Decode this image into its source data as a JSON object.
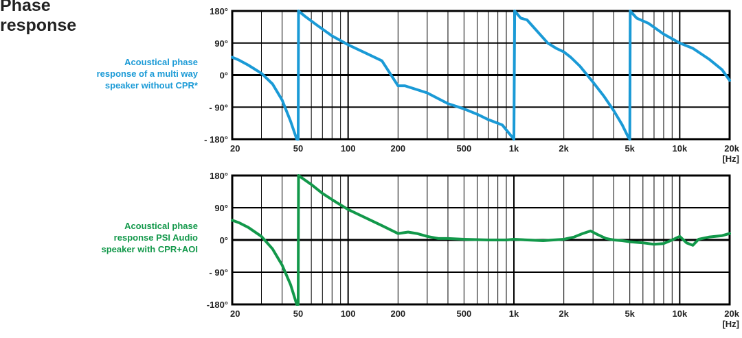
{
  "page": {
    "title": "Phase\nresponse"
  },
  "colors": {
    "without_cpr": "#1a9ad6",
    "with_cpr": "#12984a",
    "grid": "#000000",
    "text": "#222222"
  },
  "chart_data": [
    {
      "type": "line",
      "title": "",
      "xlabel": "",
      "ylabel": "",
      "x_unit": "[Hz]",
      "xscale": "log",
      "xlim": [
        20,
        20000
      ],
      "ylim": [
        -180,
        180
      ],
      "grid": true,
      "legend": "none",
      "x_tick_labels": [
        {
          "value": 20,
          "label": "20"
        },
        {
          "value": 50,
          "label": "50"
        },
        {
          "value": 100,
          "label": "100"
        },
        {
          "value": 200,
          "label": "200"
        },
        {
          "value": 500,
          "label": "500"
        },
        {
          "value": 1000,
          "label": "1k"
        },
        {
          "value": 2000,
          "label": "2k"
        },
        {
          "value": 5000,
          "label": "5k"
        },
        {
          "value": 10000,
          "label": "10k"
        },
        {
          "value": 20000,
          "label": "20k"
        }
      ],
      "y_tick_labels": [
        {
          "value": 180,
          "label": "180°"
        },
        {
          "value": 90,
          "label": "90°"
        },
        {
          "value": 0,
          "label": "0°"
        },
        {
          "value": -90,
          "label": "- 90°"
        },
        {
          "value": -180,
          "label": "- 180°"
        }
      ],
      "annotation": "Acoustical phase\nresponse of a multi way\nspeaker without CPR*",
      "series": [
        {
          "color": "#1a9ad6",
          "points": [
            [
              20,
              50
            ],
            [
              22,
              42
            ],
            [
              25,
              28
            ],
            [
              30,
              5
            ],
            [
              35,
              -25
            ],
            [
              40,
              -70
            ],
            [
              45,
              -130
            ],
            [
              49,
              -180
            ],
            [
              50,
              -180
            ],
            [
              50.2,
              180
            ],
            [
              55,
              165
            ],
            [
              65,
              140
            ],
            [
              80,
              110
            ],
            [
              100,
              85
            ],
            [
              130,
              60
            ],
            [
              160,
              40
            ],
            [
              200,
              -30
            ],
            [
              220,
              -30
            ],
            [
              300,
              -50
            ],
            [
              400,
              -80
            ],
            [
              500,
              -95
            ],
            [
              600,
              -110
            ],
            [
              700,
              -125
            ],
            [
              850,
              -140
            ],
            [
              1000,
              -180
            ],
            [
              1010,
              180
            ],
            [
              1100,
              160
            ],
            [
              1200,
              155
            ],
            [
              1400,
              120
            ],
            [
              1600,
              90
            ],
            [
              1800,
              75
            ],
            [
              2000,
              65
            ],
            [
              2200,
              50
            ],
            [
              2500,
              25
            ],
            [
              3000,
              -20
            ],
            [
              3500,
              -60
            ],
            [
              4000,
              -100
            ],
            [
              4500,
              -140
            ],
            [
              4900,
              -175
            ],
            [
              5000,
              -180
            ],
            [
              5030,
              180
            ],
            [
              5500,
              160
            ],
            [
              6500,
              145
            ],
            [
              8000,
              115
            ],
            [
              10000,
              90
            ],
            [
              12000,
              75
            ],
            [
              15000,
              45
            ],
            [
              18000,
              15
            ],
            [
              20000,
              -15
            ]
          ]
        }
      ]
    },
    {
      "type": "line",
      "title": "",
      "xlabel": "",
      "ylabel": "",
      "x_unit": "[Hz]",
      "xscale": "log",
      "xlim": [
        20,
        20000
      ],
      "ylim": [
        -180,
        180
      ],
      "grid": true,
      "legend": "none",
      "x_tick_labels": [
        {
          "value": 20,
          "label": "20"
        },
        {
          "value": 50,
          "label": "50"
        },
        {
          "value": 100,
          "label": "100"
        },
        {
          "value": 200,
          "label": "200"
        },
        {
          "value": 500,
          "label": "500"
        },
        {
          "value": 1000,
          "label": "1k"
        },
        {
          "value": 2000,
          "label": "2k"
        },
        {
          "value": 5000,
          "label": "5k"
        },
        {
          "value": 10000,
          "label": "10k"
        },
        {
          "value": 20000,
          "label": "20k"
        }
      ],
      "y_tick_labels": [
        {
          "value": 180,
          "label": "180°"
        },
        {
          "value": 90,
          "label": "90°"
        },
        {
          "value": 0,
          "label": "0°"
        },
        {
          "value": -90,
          "label": "- 90°"
        },
        {
          "value": -180,
          "label": "-180°"
        }
      ],
      "annotation": "Acoustical phase\nresponse PSI Audio\nspeaker with CPR+AOI",
      "series": [
        {
          "color": "#12984a",
          "points": [
            [
              20,
              55
            ],
            [
              22,
              48
            ],
            [
              25,
              35
            ],
            [
              30,
              10
            ],
            [
              35,
              -25
            ],
            [
              40,
              -70
            ],
            [
              45,
              -125
            ],
            [
              49,
              -180
            ],
            [
              50,
              -180
            ],
            [
              50.2,
              180
            ],
            [
              60,
              155
            ],
            [
              70,
              130
            ],
            [
              85,
              105
            ],
            [
              100,
              85
            ],
            [
              130,
              60
            ],
            [
              160,
              40
            ],
            [
              200,
              18
            ],
            [
              230,
              22
            ],
            [
              260,
              18
            ],
            [
              300,
              10
            ],
            [
              350,
              4
            ],
            [
              400,
              4
            ],
            [
              500,
              2
            ],
            [
              700,
              0
            ],
            [
              900,
              0
            ],
            [
              1000,
              2
            ],
            [
              1200,
              0
            ],
            [
              1500,
              -2
            ],
            [
              2000,
              2
            ],
            [
              2300,
              8
            ],
            [
              2600,
              18
            ],
            [
              2900,
              25
            ],
            [
              3200,
              15
            ],
            [
              3600,
              4
            ],
            [
              4000,
              0
            ],
            [
              4500,
              -2
            ],
            [
              5000,
              -5
            ],
            [
              6000,
              -8
            ],
            [
              7000,
              -12
            ],
            [
              8000,
              -10
            ],
            [
              9000,
              0
            ],
            [
              10000,
              10
            ],
            [
              11000,
              -8
            ],
            [
              12000,
              -15
            ],
            [
              13000,
              2
            ],
            [
              15000,
              8
            ],
            [
              18000,
              12
            ],
            [
              20000,
              18
            ]
          ]
        }
      ]
    }
  ]
}
